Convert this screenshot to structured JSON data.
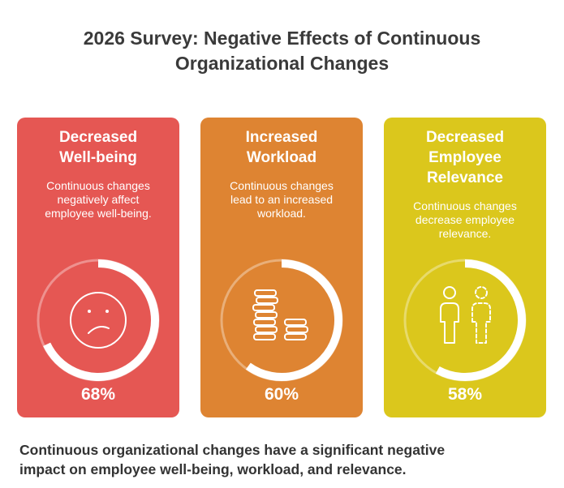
{
  "title_line1": "2026 Survey: Negative Effects of Continuous",
  "title_line2": "Organizational Changes",
  "cards": [
    {
      "title": [
        "Decreased",
        "Well-being"
      ],
      "description": [
        "Continuous changes",
        "negatively affect",
        "employee well-being."
      ],
      "percent_label": "68%",
      "percent_value": 68,
      "color": "#E55753",
      "icon": "sad-face-icon"
    },
    {
      "title": [
        "Increased",
        "Workload"
      ],
      "description": [
        "Continuous changes",
        "lead to an increased",
        "workload."
      ],
      "percent_label": "60%",
      "percent_value": 60,
      "color": "#DE8432",
      "icon": "stacked-coins-icon"
    },
    {
      "title": [
        "Decreased",
        "Employee",
        "Relevance"
      ],
      "description": [
        "Continuous changes",
        "decrease employee",
        "relevance."
      ],
      "percent_label": "58%",
      "percent_value": 58,
      "color": "#DBC71C",
      "icon": "employee-and-dashed-employee-icon"
    }
  ],
  "summary_line1": "Continuous organizational changes have a significant negative",
  "summary_line2": "impact on employee well-being, workload, and relevance."
}
